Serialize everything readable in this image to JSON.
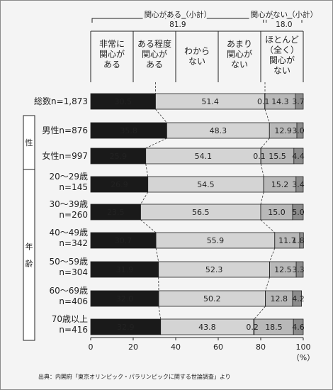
{
  "chart_data": {
    "type": "bar",
    "stacked": true,
    "orientation": "horizontal",
    "group_headers": [
      {
        "label": "関心がある（小計）",
        "value": "81.9"
      },
      {
        "label": "関心がない（小計）",
        "value": "18.0"
      }
    ],
    "series": [
      {
        "name": "非常に\n関心が\nある",
        "color": "#1a1a1a",
        "label_color": "#ffffff"
      },
      {
        "name": "ある程度\n関心が\nある",
        "color": "#d4d4d4",
        "label_color": "#222222"
      },
      {
        "name": "わから\nない",
        "color": "#ffffff",
        "label_color": "#222222"
      },
      {
        "name": "あまり\n関心が\nない",
        "color": "#b8b8b8",
        "label_color": "#222222"
      },
      {
        "name": "ほとんど\n（全く）\n関心が\nない",
        "color": "#8c8c8c",
        "label_color": "#ffffff"
      }
    ],
    "categories": [
      {
        "label": "総数n=1,873",
        "values": [
          30.5,
          51.4,
          0.1,
          14.3,
          3.7
        ]
      },
      {
        "label": "男性n=876",
        "values": [
          35.8,
          48.3,
          0.0,
          12.9,
          3.0
        ]
      },
      {
        "label": "女性n=997",
        "values": [
          25.9,
          54.1,
          0.1,
          15.5,
          4.4
        ]
      },
      {
        "label": "20〜29歳\nn=145",
        "values": [
          26.9,
          54.5,
          0.0,
          15.2,
          3.4
        ]
      },
      {
        "label": "30〜39歳\nn=260",
        "values": [
          23.5,
          56.5,
          0.0,
          15.0,
          5.0
        ]
      },
      {
        "label": "40〜49歳\nn=342",
        "values": [
          30.7,
          55.9,
          0.0,
          11.7,
          1.8
        ]
      },
      {
        "label": "50〜59歳\nn=304",
        "values": [
          31.9,
          52.3,
          0.0,
          12.5,
          3.3
        ]
      },
      {
        "label": "60〜69歳\nn=406",
        "values": [
          32.0,
          50.2,
          0.0,
          12.8,
          4.2
        ]
      },
      {
        "label": "70歳以上\nn=416",
        "values": [
          32.9,
          43.8,
          0.2,
          18.5,
          4.6
        ]
      }
    ],
    "value_labels": [
      [
        "30.5",
        "51.4",
        "0.1",
        "14.3",
        "3.7"
      ],
      [
        "35.8",
        "48.3",
        "",
        "12.9",
        "3.0"
      ],
      [
        "25.9",
        "54.1",
        "0.1",
        "15.5",
        "4.4"
      ],
      [
        "26.9",
        "54.5",
        "",
        "15.2",
        "3.4"
      ],
      [
        "23.5",
        "56.5",
        "",
        "15.0",
        "5.0"
      ],
      [
        "30.7",
        "55.9",
        "",
        "11.7",
        "1.8"
      ],
      [
        "31.9",
        "52.3",
        "",
        "12.5",
        "3.3"
      ],
      [
        "32.0",
        "50.2",
        "",
        "12.8",
        "4.2"
      ],
      [
        "32.9",
        "43.8",
        "0.2",
        "18.5",
        "4.6"
      ]
    ],
    "group_side_labels": [
      {
        "label": "性",
        "rows": [
          1,
          2
        ]
      },
      {
        "label": "年\n齢",
        "rows": [
          3,
          8
        ]
      }
    ],
    "xlim": [
      0,
      100
    ],
    "xticks": [
      "0",
      "20",
      "40",
      "60",
      "80",
      "100"
    ],
    "xunit": "（%）"
  },
  "source": "出典：内閣府「東京オリンピック・パラリンピックに関する世論調査」より"
}
